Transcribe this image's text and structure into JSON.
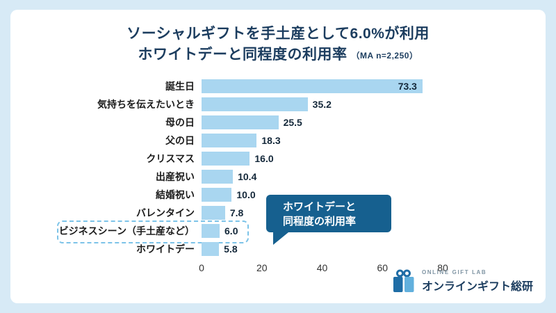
{
  "title": {
    "line1": "ソーシャルギフトを手土産として6.0%が利用",
    "line2": "ホワイトデーと同程度の利用率",
    "note": "（MA n=2,250）"
  },
  "chart_data": {
    "type": "bar",
    "orientation": "horizontal",
    "categories": [
      "誕生日",
      "気持ちを伝えたいとき",
      "母の日",
      "父の日",
      "クリスマス",
      "出産祝い",
      "結婚祝い",
      "バレンタイン",
      "ビジネスシーン（手土産など）",
      "ホワイトデー"
    ],
    "values": [
      73.3,
      35.2,
      25.5,
      18.3,
      16.0,
      10.4,
      10.0,
      7.8,
      6.0,
      5.8
    ],
    "value_labels": [
      "73.3",
      "35.2",
      "25.5",
      "18.3",
      "16.0",
      "10.4",
      "10.0",
      "7.8",
      "6.0",
      "5.8"
    ],
    "xlim": [
      0,
      80
    ],
    "x_ticks": [
      0,
      20,
      40,
      60,
      80
    ],
    "highlighted_category": "ビジネスシーン（手土産など）",
    "grid": false,
    "legend": false
  },
  "callout": {
    "line1": "ホワイトデーと",
    "line2": "同程度の利用率"
  },
  "logo": {
    "line1": "ONLINE GIFT LAB",
    "line2": "オンラインギフト総研"
  },
  "colors": {
    "background": "#d7eaf6",
    "card": "#ffffff",
    "title": "#1c3d5f",
    "bar": "#a9d6f0",
    "callout_bg": "#16608f",
    "highlight_border": "#7cc3e8"
  }
}
